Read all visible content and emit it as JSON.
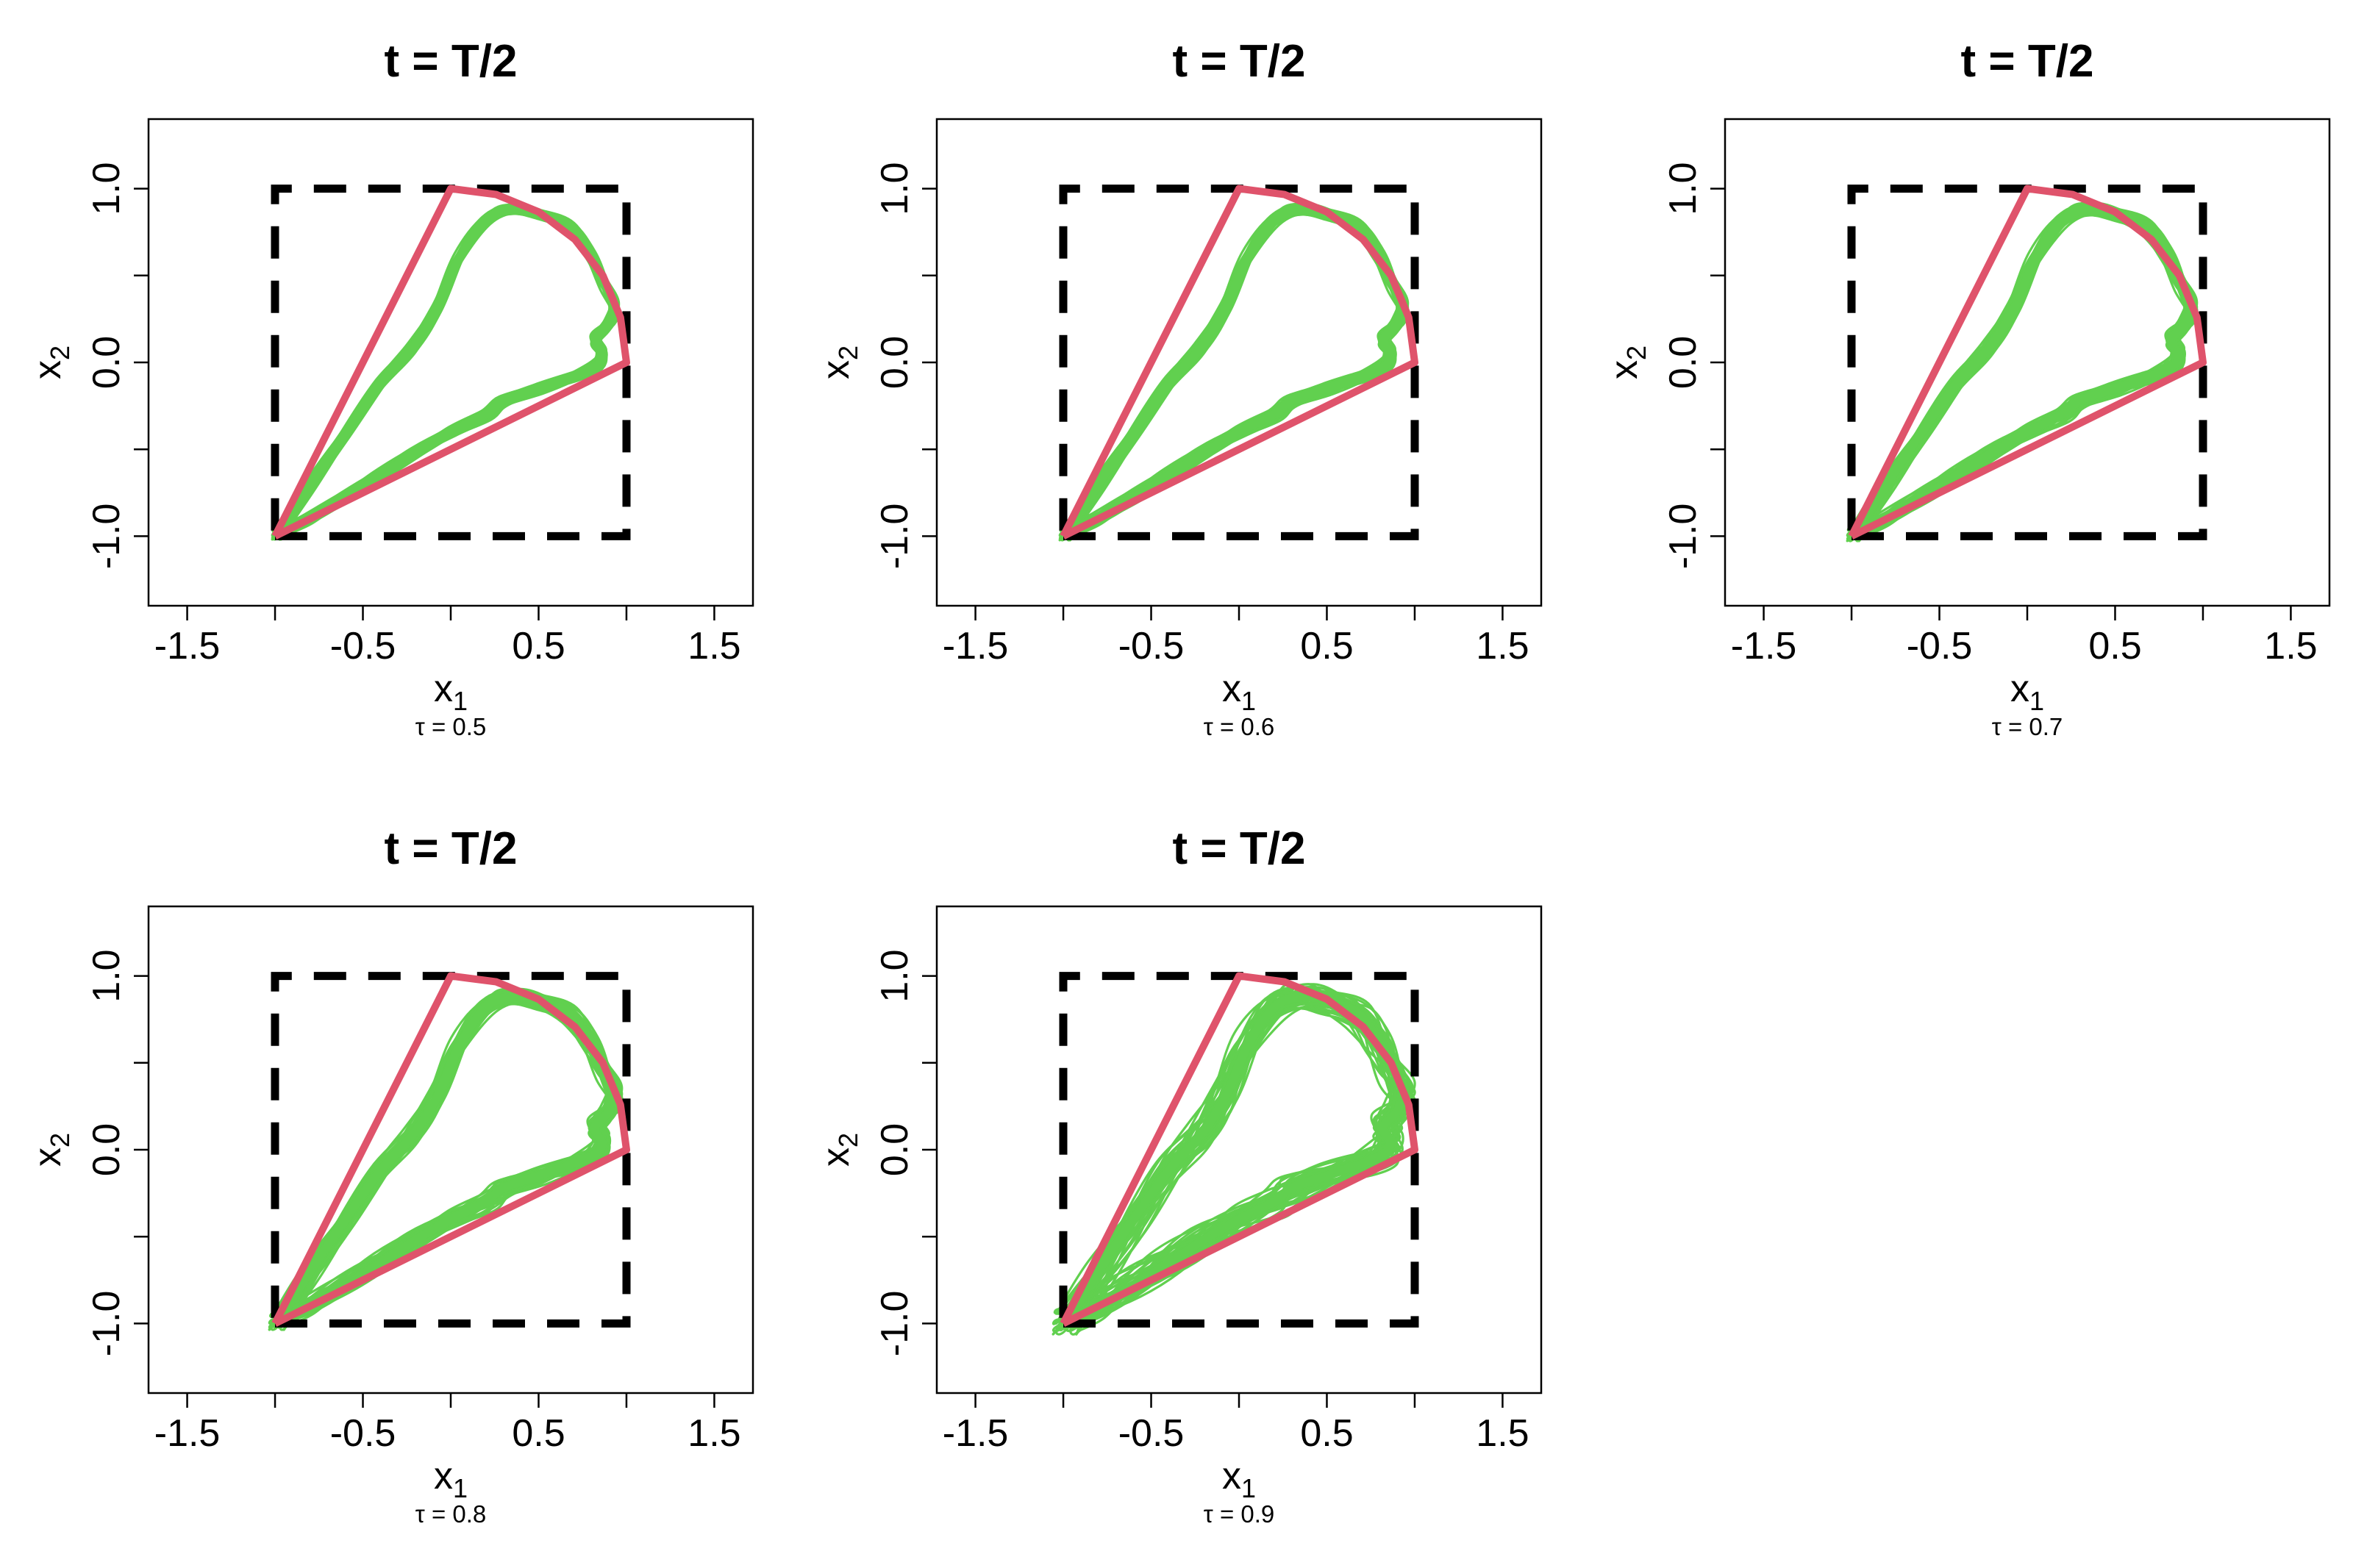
{
  "colors": {
    "background": "#ffffff",
    "ensemble": "#61D04F",
    "boundary": "#DF536B",
    "domain_box": "#000000",
    "axes": "#000000"
  },
  "chart_data": [
    {
      "type": "line",
      "title": "t = T/2",
      "xlabel": "x",
      "xlabel_sub": "1",
      "ylabel": "x",
      "ylabel_sub": "2",
      "caption": "τ = 0.5",
      "xlim": [
        -1.72,
        1.72
      ],
      "ylim": [
        -1.4,
        1.4
      ],
      "xticks": [
        -1.5,
        -1.0,
        -0.5,
        0.0,
        0.5,
        1.0,
        1.5
      ],
      "xtick_labels": [
        "-1.5",
        "",
        "-0.5",
        "",
        "0.5",
        "",
        "1.5"
      ],
      "yticks": [
        -1.0,
        -0.5,
        0.0,
        0.5,
        1.0
      ],
      "ytick_labels": [
        "-1.0",
        "",
        "0.0",
        "",
        "1.0"
      ],
      "ensemble_spread": 0.03,
      "ensemble_members": 40,
      "series": [
        {
          "role": "domain-box",
          "style": "dashed",
          "x": [
            -1,
            1,
            1,
            -1,
            -1
          ],
          "y": [
            -1,
            -1,
            1,
            1,
            -1
          ]
        },
        {
          "role": "boundary",
          "x": [
            -1,
            0,
            0.259,
            0.5,
            0.707,
            0.866,
            0.966,
            1,
            -1
          ],
          "y": [
            -1,
            1,
            0.966,
            0.866,
            0.707,
            0.5,
            0.259,
            0,
            -1
          ]
        },
        {
          "role": "ensemble",
          "x": [
            -0.97,
            -0.8,
            -0.6,
            -0.4,
            -0.22,
            -0.08,
            0.05,
            0.2,
            0.35,
            0.52,
            0.68,
            0.8,
            0.88,
            0.93,
            0.9,
            0.82,
            0.86,
            0.83,
            0.7,
            0.5,
            0.3,
            0.2,
            0.0,
            -0.2,
            -0.4,
            -0.6,
            -0.8,
            -0.97
          ],
          "y": [
            -0.97,
            -0.7,
            -0.4,
            -0.12,
            0.08,
            0.3,
            0.6,
            0.82,
            0.88,
            0.85,
            0.78,
            0.62,
            0.45,
            0.32,
            0.22,
            0.13,
            0.04,
            -0.02,
            -0.08,
            -0.15,
            -0.22,
            -0.3,
            -0.4,
            -0.52,
            -0.65,
            -0.78,
            -0.9,
            -0.97
          ]
        }
      ]
    },
    {
      "type": "line",
      "title": "t = T/2",
      "xlabel": "x",
      "xlabel_sub": "1",
      "ylabel": "x",
      "ylabel_sub": "2",
      "caption": "τ = 0.6",
      "xlim": [
        -1.72,
        1.72
      ],
      "ylim": [
        -1.4,
        1.4
      ],
      "xticks": [
        -1.5,
        -1.0,
        -0.5,
        0.0,
        0.5,
        1.0,
        1.5
      ],
      "xtick_labels": [
        "-1.5",
        "",
        "-0.5",
        "",
        "0.5",
        "",
        "1.5"
      ],
      "yticks": [
        -1.0,
        -0.5,
        0.0,
        0.5,
        1.0
      ],
      "ytick_labels": [
        "-1.0",
        "",
        "0.0",
        "",
        "1.0"
      ],
      "ensemble_spread": 0.035,
      "ensemble_members": 40,
      "series": [
        {
          "role": "domain-box",
          "style": "dashed",
          "x": [
            -1,
            1,
            1,
            -1,
            -1
          ],
          "y": [
            -1,
            -1,
            1,
            1,
            -1
          ]
        },
        {
          "role": "boundary",
          "x": [
            -1,
            0,
            0.259,
            0.5,
            0.707,
            0.866,
            0.966,
            1,
            -1
          ],
          "y": [
            -1,
            1,
            0.966,
            0.866,
            0.707,
            0.5,
            0.259,
            0,
            -1
          ]
        },
        {
          "role": "ensemble",
          "x": [
            -0.97,
            -0.8,
            -0.6,
            -0.4,
            -0.22,
            -0.08,
            0.05,
            0.2,
            0.35,
            0.52,
            0.68,
            0.8,
            0.88,
            0.93,
            0.9,
            0.82,
            0.86,
            0.83,
            0.7,
            0.5,
            0.3,
            0.2,
            0.0,
            -0.2,
            -0.4,
            -0.6,
            -0.8,
            -0.97
          ],
          "y": [
            -0.97,
            -0.7,
            -0.4,
            -0.12,
            0.08,
            0.3,
            0.6,
            0.82,
            0.88,
            0.85,
            0.78,
            0.62,
            0.45,
            0.32,
            0.22,
            0.13,
            0.04,
            -0.02,
            -0.08,
            -0.15,
            -0.22,
            -0.3,
            -0.4,
            -0.52,
            -0.65,
            -0.78,
            -0.9,
            -0.97
          ]
        }
      ]
    },
    {
      "type": "line",
      "title": "t = T/2",
      "xlabel": "x",
      "xlabel_sub": "1",
      "ylabel": "x",
      "ylabel_sub": "2",
      "caption": "τ = 0.7",
      "xlim": [
        -1.72,
        1.72
      ],
      "ylim": [
        -1.4,
        1.4
      ],
      "xticks": [
        -1.5,
        -1.0,
        -0.5,
        0.0,
        0.5,
        1.0,
        1.5
      ],
      "xtick_labels": [
        "-1.5",
        "",
        "-0.5",
        "",
        "0.5",
        "",
        "1.5"
      ],
      "yticks": [
        -1.0,
        -0.5,
        0.0,
        0.5,
        1.0
      ],
      "ytick_labels": [
        "-1.0",
        "",
        "0.0",
        "",
        "1.0"
      ],
      "ensemble_spread": 0.04,
      "ensemble_members": 40,
      "series": [
        {
          "role": "domain-box",
          "style": "dashed",
          "x": [
            -1,
            1,
            1,
            -1,
            -1
          ],
          "y": [
            -1,
            -1,
            1,
            1,
            -1
          ]
        },
        {
          "role": "boundary",
          "x": [
            -1,
            0,
            0.259,
            0.5,
            0.707,
            0.866,
            0.966,
            1,
            -1
          ],
          "y": [
            -1,
            1,
            0.966,
            0.866,
            0.707,
            0.5,
            0.259,
            0,
            -1
          ]
        },
        {
          "role": "ensemble",
          "x": [
            -0.97,
            -0.8,
            -0.6,
            -0.4,
            -0.22,
            -0.08,
            0.05,
            0.2,
            0.35,
            0.52,
            0.68,
            0.8,
            0.88,
            0.93,
            0.9,
            0.82,
            0.86,
            0.83,
            0.7,
            0.5,
            0.3,
            0.2,
            0.0,
            -0.2,
            -0.4,
            -0.6,
            -0.8,
            -0.97
          ],
          "y": [
            -0.97,
            -0.7,
            -0.4,
            -0.12,
            0.08,
            0.3,
            0.6,
            0.82,
            0.88,
            0.85,
            0.78,
            0.62,
            0.45,
            0.32,
            0.22,
            0.13,
            0.04,
            -0.02,
            -0.08,
            -0.15,
            -0.22,
            -0.3,
            -0.4,
            -0.52,
            -0.65,
            -0.78,
            -0.9,
            -0.97
          ]
        }
      ]
    },
    {
      "type": "line",
      "title": "t = T/2",
      "xlabel": "x",
      "xlabel_sub": "1",
      "ylabel": "x",
      "ylabel_sub": "2",
      "caption": "τ = 0.8",
      "xlim": [
        -1.72,
        1.72
      ],
      "ylim": [
        -1.4,
        1.4
      ],
      "xticks": [
        -1.5,
        -1.0,
        -0.5,
        0.0,
        0.5,
        1.0,
        1.5
      ],
      "xtick_labels": [
        "-1.5",
        "",
        "-0.5",
        "",
        "0.5",
        "",
        "1.5"
      ],
      "yticks": [
        -1.0,
        -0.5,
        0.0,
        0.5,
        1.0
      ],
      "ytick_labels": [
        "-1.0",
        "",
        "0.0",
        "",
        "1.0"
      ],
      "ensemble_spread": 0.05,
      "ensemble_members": 40,
      "series": [
        {
          "role": "domain-box",
          "style": "dashed",
          "x": [
            -1,
            1,
            1,
            -1,
            -1
          ],
          "y": [
            -1,
            -1,
            1,
            1,
            -1
          ]
        },
        {
          "role": "boundary",
          "x": [
            -1,
            0,
            0.259,
            0.5,
            0.707,
            0.866,
            0.966,
            1,
            -1
          ],
          "y": [
            -1,
            1,
            0.966,
            0.866,
            0.707,
            0.5,
            0.259,
            0,
            -1
          ]
        },
        {
          "role": "ensemble",
          "x": [
            -0.97,
            -0.8,
            -0.6,
            -0.4,
            -0.22,
            -0.08,
            0.05,
            0.2,
            0.35,
            0.52,
            0.68,
            0.8,
            0.88,
            0.93,
            0.9,
            0.82,
            0.86,
            0.83,
            0.7,
            0.5,
            0.3,
            0.2,
            0.0,
            -0.2,
            -0.4,
            -0.6,
            -0.8,
            -0.97
          ],
          "y": [
            -0.97,
            -0.7,
            -0.4,
            -0.12,
            0.08,
            0.3,
            0.6,
            0.82,
            0.88,
            0.85,
            0.78,
            0.62,
            0.45,
            0.32,
            0.22,
            0.13,
            0.04,
            -0.02,
            -0.08,
            -0.15,
            -0.22,
            -0.3,
            -0.4,
            -0.52,
            -0.65,
            -0.78,
            -0.9,
            -0.97
          ]
        }
      ]
    },
    {
      "type": "line",
      "title": "t = T/2",
      "xlabel": "x",
      "xlabel_sub": "1",
      "ylabel": "x",
      "ylabel_sub": "2",
      "caption": "τ = 0.9",
      "xlim": [
        -1.72,
        1.72
      ],
      "ylim": [
        -1.4,
        1.4
      ],
      "xticks": [
        -1.5,
        -1.0,
        -0.5,
        0.0,
        0.5,
        1.0,
        1.5
      ],
      "xtick_labels": [
        "-1.5",
        "",
        "-0.5",
        "",
        "0.5",
        "",
        "1.5"
      ],
      "yticks": [
        -1.0,
        -0.5,
        0.0,
        0.5,
        1.0
      ],
      "ytick_labels": [
        "-1.0",
        "",
        "0.0",
        "",
        "1.0"
      ],
      "ensemble_spread": 0.08,
      "ensemble_members": 40,
      "series": [
        {
          "role": "domain-box",
          "style": "dashed",
          "x": [
            -1,
            1,
            1,
            -1,
            -1
          ],
          "y": [
            -1,
            -1,
            1,
            1,
            -1
          ]
        },
        {
          "role": "boundary",
          "x": [
            -1,
            0,
            0.259,
            0.5,
            0.707,
            0.866,
            0.966,
            1,
            -1
          ],
          "y": [
            -1,
            1,
            0.966,
            0.866,
            0.707,
            0.5,
            0.259,
            0,
            -1
          ]
        },
        {
          "role": "ensemble",
          "x": [
            -0.97,
            -0.8,
            -0.6,
            -0.4,
            -0.22,
            -0.08,
            0.05,
            0.2,
            0.35,
            0.52,
            0.68,
            0.8,
            0.88,
            0.93,
            0.9,
            0.82,
            0.86,
            0.83,
            0.7,
            0.5,
            0.3,
            0.2,
            0.0,
            -0.2,
            -0.4,
            -0.6,
            -0.8,
            -0.97
          ],
          "y": [
            -0.97,
            -0.7,
            -0.4,
            -0.12,
            0.08,
            0.3,
            0.6,
            0.82,
            0.88,
            0.85,
            0.78,
            0.62,
            0.45,
            0.32,
            0.22,
            0.13,
            0.04,
            -0.02,
            -0.08,
            -0.15,
            -0.22,
            -0.3,
            -0.4,
            -0.52,
            -0.65,
            -0.78,
            -0.9,
            -0.97
          ]
        }
      ]
    }
  ]
}
